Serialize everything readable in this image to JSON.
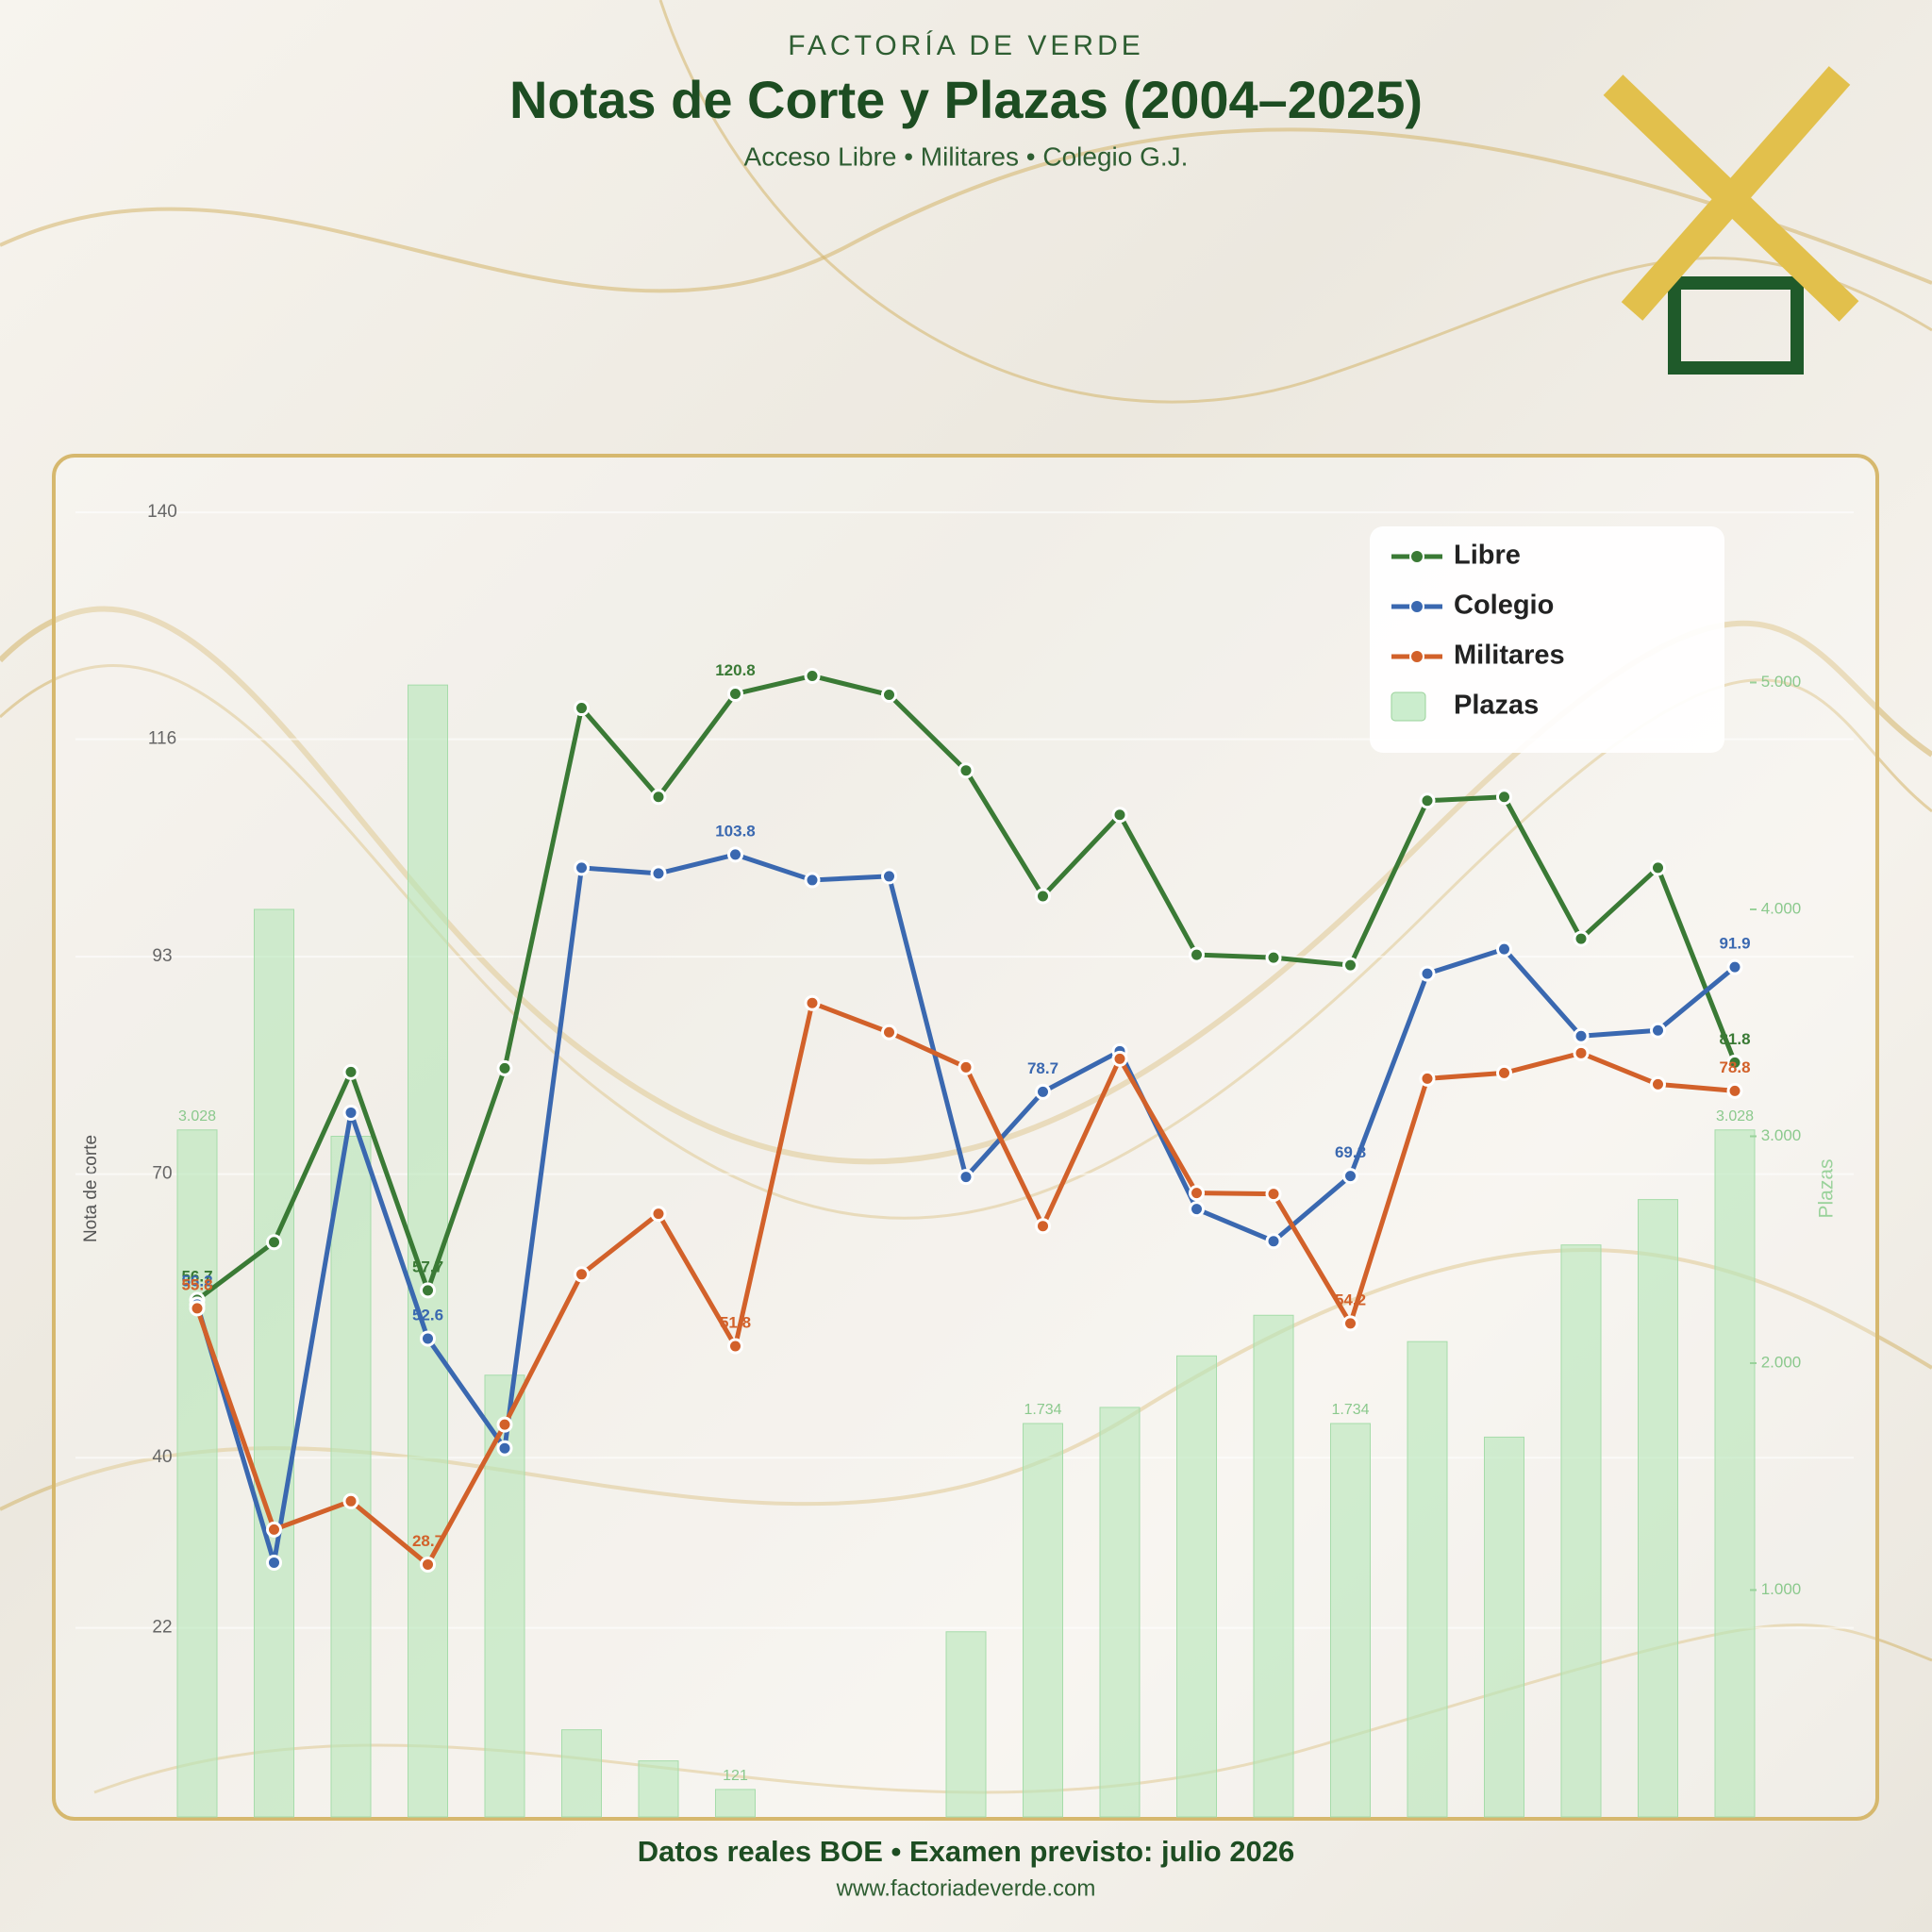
{
  "brand": "FACTORÍA DE VERDE",
  "chart_data": {
    "type": "line",
    "title": "Notas de Corte y Plazas (2004–2025)",
    "subtitle": "Acceso Libre • Militares • Colegio G.J.",
    "y_label": "Nota de corte",
    "y2_label": "Plazas",
    "categories": [
      null,
      null,
      null,
      null,
      null,
      null,
      null,
      null,
      null,
      null,
      null,
      null,
      null,
      null,
      null,
      null,
      null,
      null,
      null,
      null,
      null
    ],
    "ylim": [
      2,
      146
    ],
    "yticks": [
      140,
      116,
      93,
      70,
      40,
      22
    ],
    "y2lim": [
      0,
      6000
    ],
    "y2ticks": [
      {
        "value": 5000,
        "label": "5.000"
      },
      {
        "value": 4000,
        "label": "4.000"
      },
      {
        "value": 3000,
        "label": "3.000"
      },
      {
        "value": 2000,
        "label": "2.000"
      },
      {
        "value": 1000,
        "label": "1.000"
      }
    ],
    "grid": true,
    "legend": "upper-right",
    "series": [
      {
        "name": "Libre",
        "color": "#3a7a35",
        "values": [
          56.7,
          62.8,
          80.8,
          57.7,
          81.2,
          119.3,
          109.9,
          120.8,
          122.7,
          120.7,
          112.7,
          99.4,
          108,
          93.2,
          92.9,
          92.1,
          109.5,
          109.9,
          94.9,
          102.4,
          81.8
        ],
        "value_labels": [
          "56.7",
          null,
          null,
          "57.7",
          null,
          null,
          null,
          "120.8",
          null,
          null,
          null,
          null,
          null,
          null,
          null,
          null,
          null,
          null,
          null,
          null,
          "81.8"
        ]
      },
      {
        "name": "Colegio",
        "color": "#3a68b0",
        "values": [
          56.2,
          28.9,
          76.5,
          52.6,
          41,
          102.4,
          101.8,
          103.8,
          101.1,
          101.5,
          69.7,
          78.7,
          83,
          66.3,
          62.9,
          69.8,
          91.2,
          93.8,
          84.6,
          85.2,
          91.9
        ],
        "value_labels": [
          "56.2",
          null,
          null,
          "52.6",
          null,
          null,
          null,
          "103.8",
          null,
          null,
          null,
          "78.7",
          null,
          null,
          null,
          "69.8",
          null,
          null,
          null,
          null,
          "91.9"
        ]
      },
      {
        "name": "Militares",
        "color": "#d2612a",
        "values": [
          55.8,
          32.4,
          35.4,
          28.7,
          43.5,
          59.4,
          65.8,
          51.8,
          88.1,
          85,
          81.3,
          64.5,
          82.2,
          68,
          67.9,
          54.2,
          80.1,
          80.7,
          82.8,
          79.5,
          78.8
        ],
        "value_labels": [
          "55.8",
          null,
          null,
          "28.7",
          null,
          null,
          null,
          "51.8",
          null,
          null,
          null,
          null,
          null,
          null,
          null,
          "54.2",
          null,
          null,
          null,
          null,
          "78.8"
        ]
      },
      {
        "name": "Plazas",
        "type": "bar",
        "axis": "y2",
        "color": "#b5e6b8",
        "values": [
          3028,
          4000,
          3000,
          4989,
          1947,
          384,
          247,
          121,
          null,
          null,
          816,
          1734,
          1805,
          2032,
          2211,
          1734,
          2095,
          1674,
          2521,
          2721,
          3028
        ],
        "value_labels": [
          "3.028",
          null,
          null,
          null,
          null,
          null,
          null,
          "121",
          null,
          null,
          null,
          "1.734",
          null,
          null,
          null,
          "1.734",
          null,
          null,
          null,
          null,
          "3.028"
        ]
      }
    ]
  },
  "footer": {
    "note": "Datos reales BOE • Examen previsto: julio 2026",
    "url": "www.factoriadeverde.com"
  }
}
